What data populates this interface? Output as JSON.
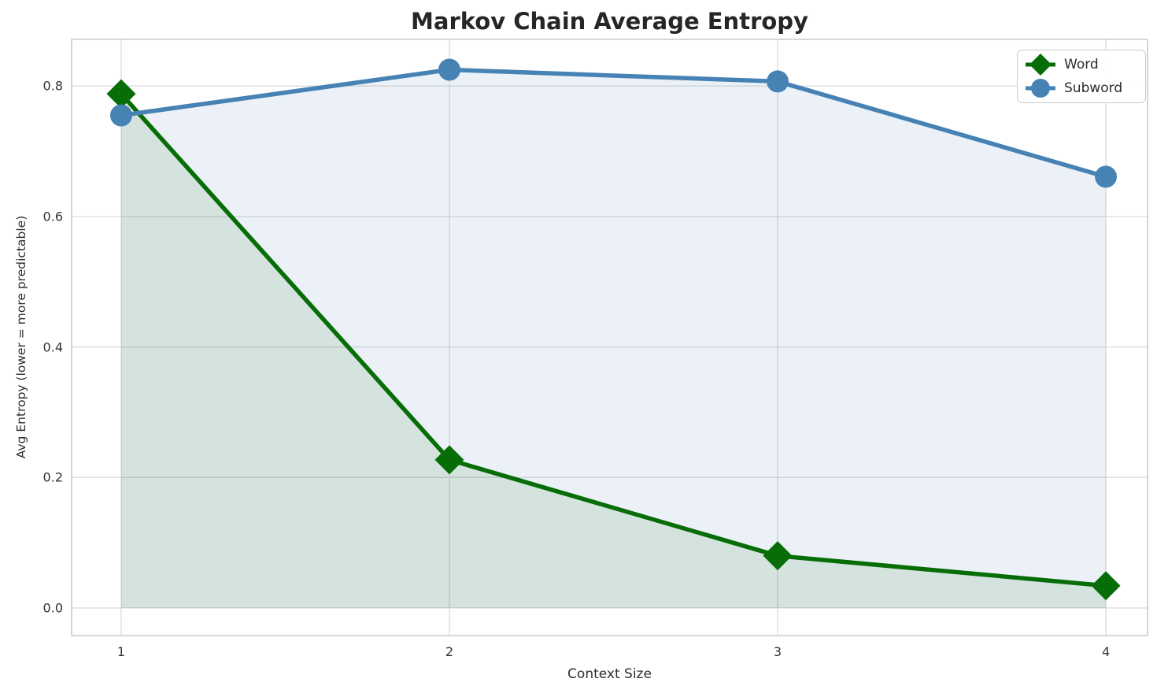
{
  "figure": {
    "title": "Markov Chain Average Entropy",
    "xlabel": "Context Size",
    "ylabel": "Avg Entropy (lower = more predictable)"
  },
  "legend": {
    "position": "upper right",
    "items": [
      {
        "label": "Word",
        "marker": "diamond-icon"
      },
      {
        "label": "Subword",
        "marker": "circle-icon"
      }
    ]
  },
  "chart_data": {
    "type": "line",
    "title": "Markov Chain Average Entropy",
    "xlabel": "Context Size",
    "ylabel": "Avg Entropy (lower = more predictable)",
    "x": [
      1,
      2,
      3,
      4
    ],
    "series": [
      {
        "name": "Word",
        "color": "#076d07",
        "marker": "diamond",
        "fill_to_zero": true,
        "fill_opacity": 0.1,
        "values": [
          0.788,
          0.227,
          0.08,
          0.034
        ]
      },
      {
        "name": "Subword",
        "color": "#4682B4",
        "marker": "circle",
        "fill_to_zero": true,
        "fill_opacity": 0.11,
        "values": [
          0.755,
          0.825,
          0.807,
          0.661
        ]
      }
    ],
    "xticks": [
      1,
      2,
      3,
      4
    ],
    "xtick_labels": [
      "1",
      "2",
      "3",
      "4"
    ],
    "yticks": [
      0.0,
      0.2,
      0.4,
      0.6,
      0.8
    ],
    "ytick_labels": [
      "0.0",
      "0.2",
      "0.4",
      "0.6",
      "0.8"
    ],
    "xlim": [
      0.849,
      4.127
    ],
    "ylim": [
      -0.0423,
      0.8715
    ],
    "grid": true,
    "legend_position": "upper right",
    "style": {
      "grid_color": "#dddddd",
      "spine_color": "#cccccc",
      "tick_color": "#333333",
      "background": "#ffffff",
      "line_width": 5.5
    }
  }
}
